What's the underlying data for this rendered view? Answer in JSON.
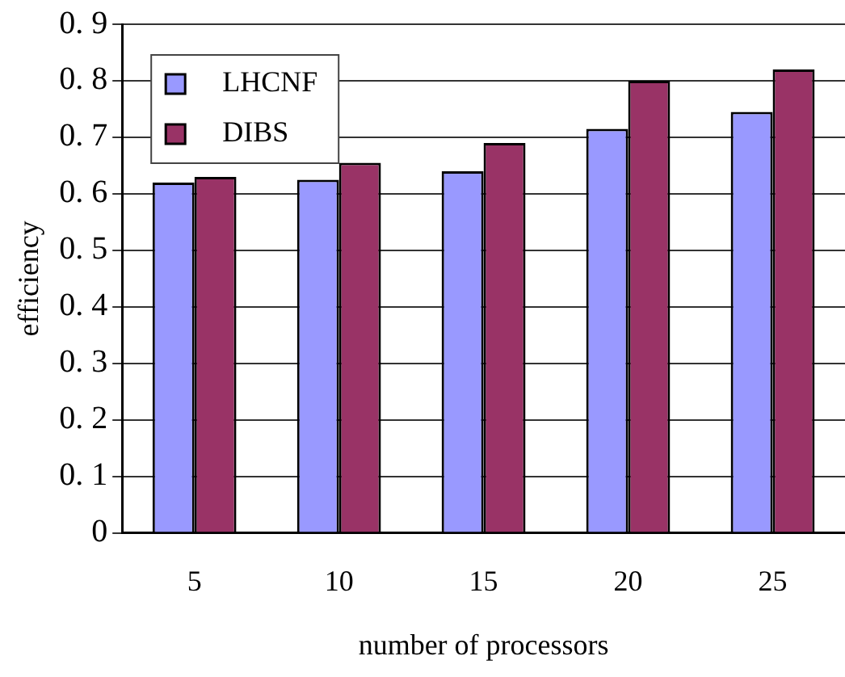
{
  "chart_data": {
    "type": "bar",
    "xlabel": "number of processors",
    "ylabel": "efficiency",
    "categories": [
      "5",
      "10",
      "15",
      "20",
      "25"
    ],
    "series": [
      {
        "name": "LHCNF",
        "color": "#9999ff",
        "values": [
          0.62,
          0.625,
          0.64,
          0.715,
          0.745
        ]
      },
      {
        "name": "DIBS",
        "color": "#993366",
        "values": [
          0.63,
          0.655,
          0.69,
          0.8,
          0.82
        ]
      }
    ],
    "ylim": [
      0,
      0.9
    ],
    "yticks": [
      0,
      0.1,
      0.2,
      0.3,
      0.4,
      0.5,
      0.6,
      0.7,
      0.8,
      0.9
    ],
    "grid": "y",
    "legend": "top left"
  }
}
